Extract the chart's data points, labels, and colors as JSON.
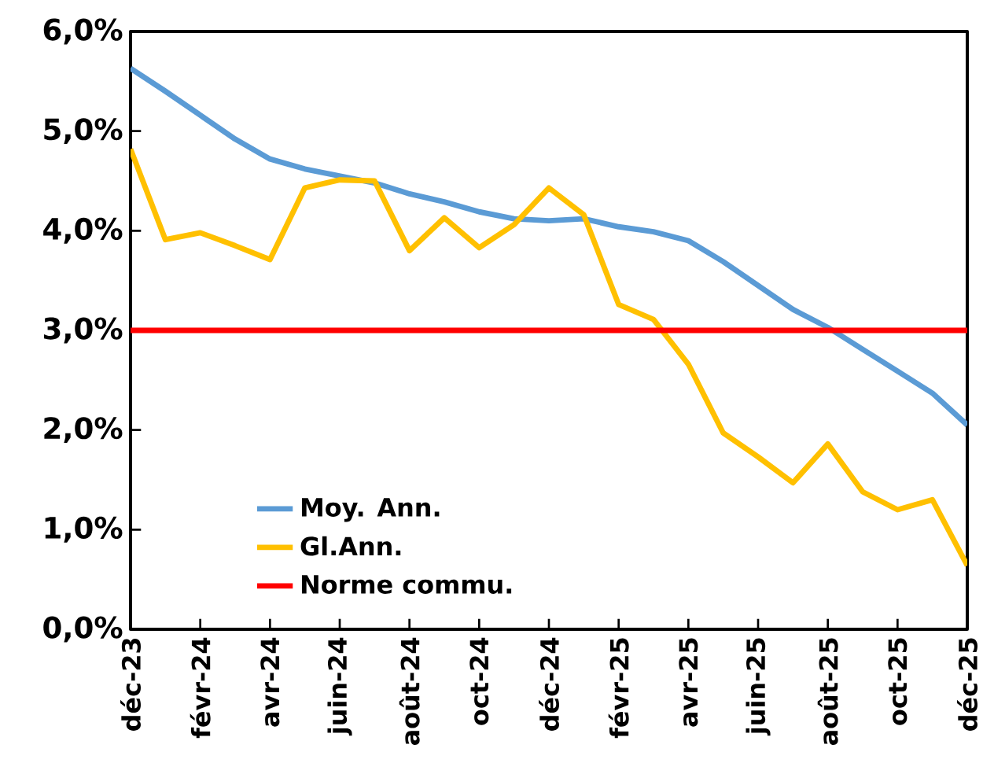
{
  "chart_data": {
    "type": "line",
    "categories": [
      "déc-23",
      null,
      "févr-24",
      null,
      "avr-24",
      null,
      "juin-24",
      null,
      "août-24",
      null,
      "oct-24",
      null,
      "déc-24",
      null,
      "févr-25",
      null,
      "avr-25",
      null,
      "juin-25",
      null,
      "août-25",
      null,
      "oct-25",
      null,
      "déc-25"
    ],
    "series": [
      {
        "name": "Moy. Ann.",
        "color": "#5b9bd5",
        "values": [
          5.63,
          5.4,
          5.16,
          4.92,
          4.72,
          4.62,
          4.55,
          4.48,
          4.37,
          4.29,
          4.19,
          4.12,
          4.1,
          4.12,
          4.04,
          3.99,
          3.9,
          3.69,
          3.45,
          3.21,
          3.03,
          2.81,
          2.59,
          2.37,
          2.05
        ]
      },
      {
        "name": "Gl.Ann.",
        "color": "#ffc000",
        "values": [
          4.82,
          3.91,
          3.98,
          3.85,
          3.71,
          4.43,
          4.51,
          4.5,
          3.8,
          4.13,
          3.83,
          4.06,
          4.43,
          4.16,
          3.26,
          3.11,
          2.66,
          1.97,
          1.73,
          1.47,
          1.86,
          1.38,
          1.2,
          1.3,
          0.64
        ]
      }
    ],
    "ref_lines": [
      {
        "axis": "y",
        "value": 3,
        "label": "Norme commu.",
        "color": "#ff0000"
      }
    ],
    "ylim": [
      0,
      6
    ],
    "yticks": [
      {
        "value": 0,
        "label": "0,0%"
      },
      {
        "value": 1,
        "label": "1,0%"
      },
      {
        "value": 2,
        "label": "2,0%"
      },
      {
        "value": 3,
        "label": "3,0%"
      },
      {
        "value": 4,
        "label": "4,0%"
      },
      {
        "value": 5,
        "label": "5,0%"
      },
      {
        "value": 6,
        "label": "6,0%"
      }
    ],
    "legend": "bottom left",
    "marker": "none",
    "line_style": "solid"
  }
}
